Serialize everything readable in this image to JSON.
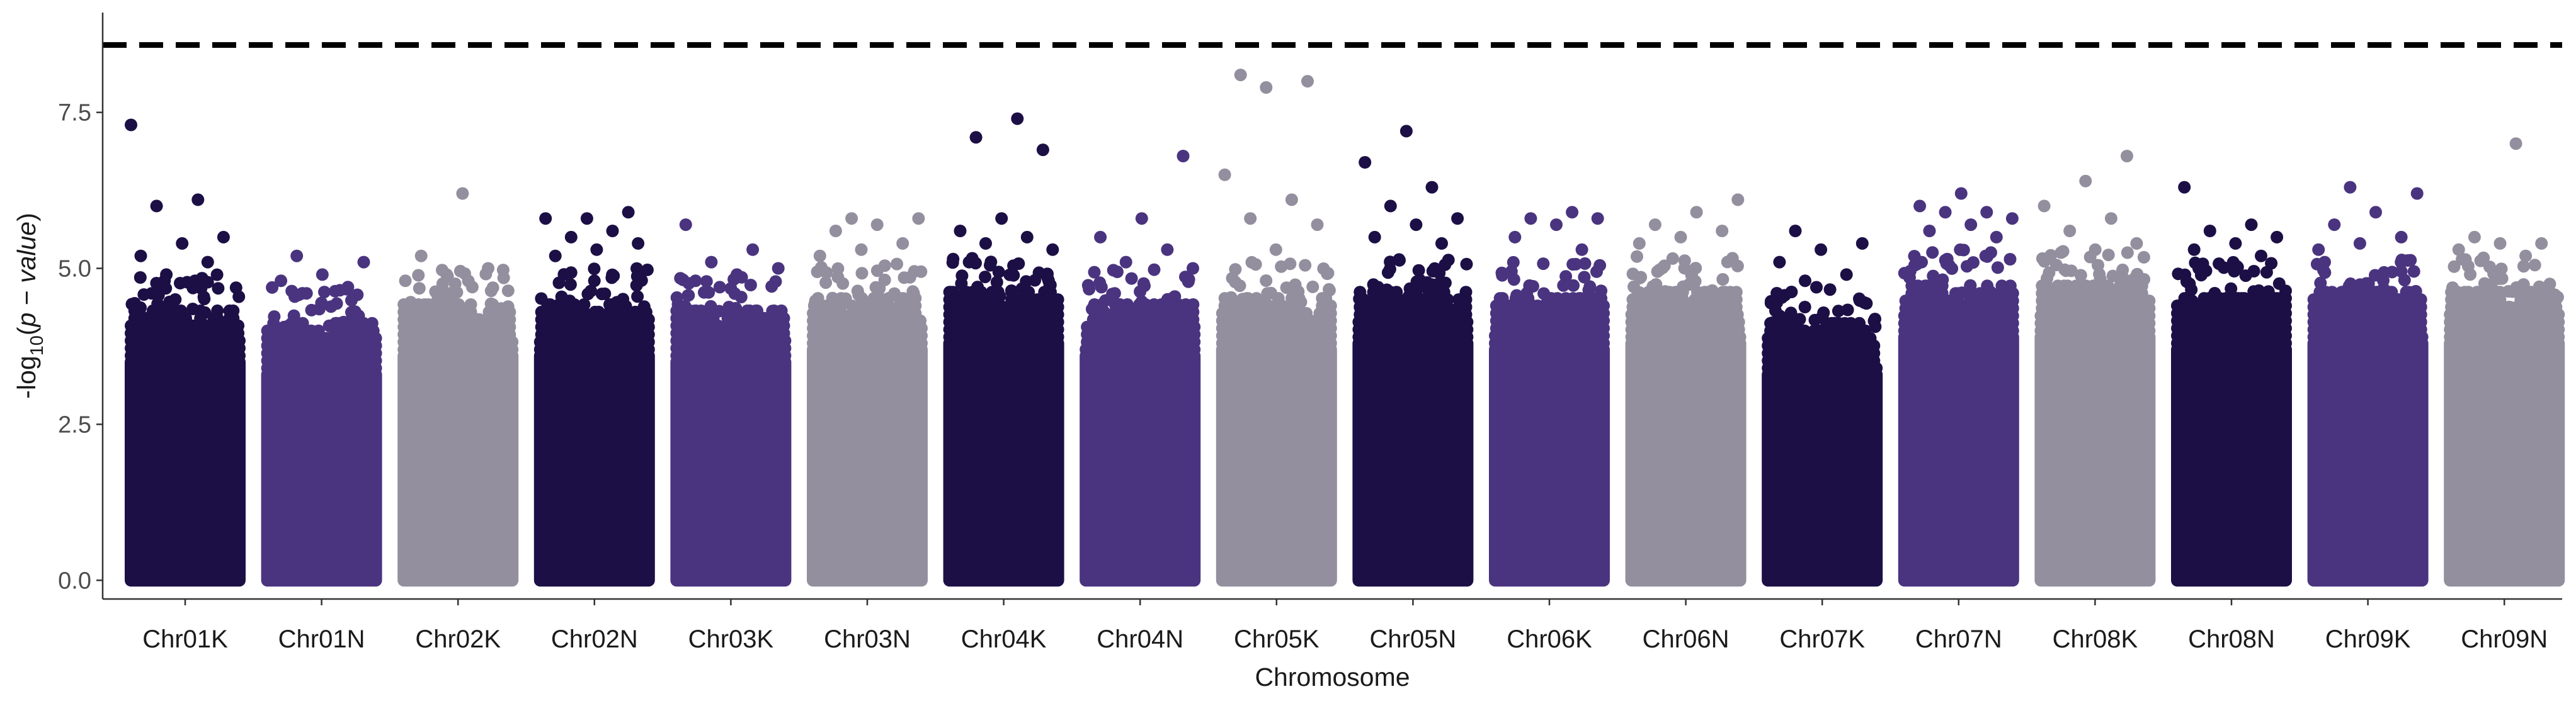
{
  "chart_data": {
    "type": "scatter",
    "subtype": "manhattan",
    "title": "",
    "xlabel": "Chromosome",
    "ylabel_parts": [
      "-log",
      "10",
      "(",
      "p",
      " − ",
      "value",
      ")"
    ],
    "ylim": [
      -0.3,
      9.1
    ],
    "y_ticks": [
      0.0,
      2.5,
      5.0,
      7.5
    ],
    "y_tick_labels": [
      "0.0",
      "2.5",
      "5.0",
      "7.5"
    ],
    "threshold": 8.58,
    "threshold_style": "dashed",
    "grid": false,
    "legend": "none",
    "palette": [
      "#1c0f45",
      "#4a347f",
      "#938f9e"
    ],
    "categories": [
      {
        "name": "Chr01K",
        "color": "#1c0f45",
        "base_max": 4.2,
        "peaks": [
          7.3,
          6.1,
          6.0,
          5.5,
          5.4,
          5.2,
          5.1,
          4.9
        ]
      },
      {
        "name": "Chr01N",
        "color": "#4a347f",
        "base_max": 4.0,
        "peaks": [
          5.2,
          5.1,
          4.9,
          4.8,
          4.7,
          4.6
        ]
      },
      {
        "name": "Chr02K",
        "color": "#938f9e",
        "base_max": 4.3,
        "peaks": [
          6.2,
          5.2,
          5.0,
          4.9,
          4.8,
          4.7
        ]
      },
      {
        "name": "Chr02N",
        "color": "#1c0f45",
        "base_max": 4.3,
        "peaks": [
          5.9,
          5.8,
          5.8,
          5.6,
          5.5,
          5.4,
          5.3,
          5.2
        ]
      },
      {
        "name": "Chr03K",
        "color": "#4a347f",
        "base_max": 4.2,
        "peaks": [
          5.7,
          5.3,
          5.1,
          5.0,
          4.9,
          4.8
        ]
      },
      {
        "name": "Chr03N",
        "color": "#938f9e",
        "base_max": 4.4,
        "peaks": [
          5.8,
          5.8,
          5.7,
          5.6,
          5.4,
          5.3,
          5.2
        ]
      },
      {
        "name": "Chr04K",
        "color": "#1c0f45",
        "base_max": 4.5,
        "peaks": [
          7.4,
          7.1,
          6.9,
          5.8,
          5.6,
          5.5,
          5.4,
          5.3
        ]
      },
      {
        "name": "Chr04N",
        "color": "#4a347f",
        "base_max": 4.3,
        "peaks": [
          6.8,
          5.8,
          5.5,
          5.3,
          5.1,
          5.0
        ]
      },
      {
        "name": "Chr05K",
        "color": "#938f9e",
        "base_max": 4.4,
        "peaks": [
          8.1,
          8.0,
          7.9,
          6.5,
          6.1,
          5.8,
          5.7,
          5.3
        ]
      },
      {
        "name": "Chr05N",
        "color": "#1c0f45",
        "base_max": 4.5,
        "peaks": [
          7.2,
          6.7,
          6.3,
          6.0,
          5.8,
          5.7,
          5.5,
          5.4
        ]
      },
      {
        "name": "Chr06K",
        "color": "#4a347f",
        "base_max": 4.4,
        "peaks": [
          5.9,
          5.8,
          5.8,
          5.7,
          5.5,
          5.3
        ]
      },
      {
        "name": "Chr06N",
        "color": "#938f9e",
        "base_max": 4.5,
        "peaks": [
          6.1,
          5.9,
          5.7,
          5.6,
          5.5,
          5.4
        ]
      },
      {
        "name": "Chr07K",
        "color": "#1c0f45",
        "base_max": 4.0,
        "peaks": [
          5.6,
          5.4,
          5.3,
          5.1,
          4.9,
          4.8
        ]
      },
      {
        "name": "Chr07N",
        "color": "#4a347f",
        "base_max": 4.6,
        "peaks": [
          6.2,
          6.0,
          5.9,
          5.9,
          5.8,
          5.7,
          5.6,
          5.5
        ]
      },
      {
        "name": "Chr08K",
        "color": "#938f9e",
        "base_max": 4.6,
        "peaks": [
          6.8,
          6.4,
          6.0,
          5.8,
          5.6,
          5.4,
          5.3
        ]
      },
      {
        "name": "Chr08N",
        "color": "#1c0f45",
        "base_max": 4.4,
        "peaks": [
          6.3,
          5.7,
          5.6,
          5.5,
          5.4,
          5.3,
          5.2
        ]
      },
      {
        "name": "Chr09K",
        "color": "#4a347f",
        "base_max": 4.5,
        "peaks": [
          6.3,
          6.2,
          5.9,
          5.7,
          5.5,
          5.4,
          5.3
        ]
      },
      {
        "name": "Chr09N",
        "color": "#938f9e",
        "base_max": 4.5,
        "peaks": [
          7.0,
          5.5,
          5.4,
          5.4,
          5.3,
          5.2
        ]
      }
    ]
  }
}
